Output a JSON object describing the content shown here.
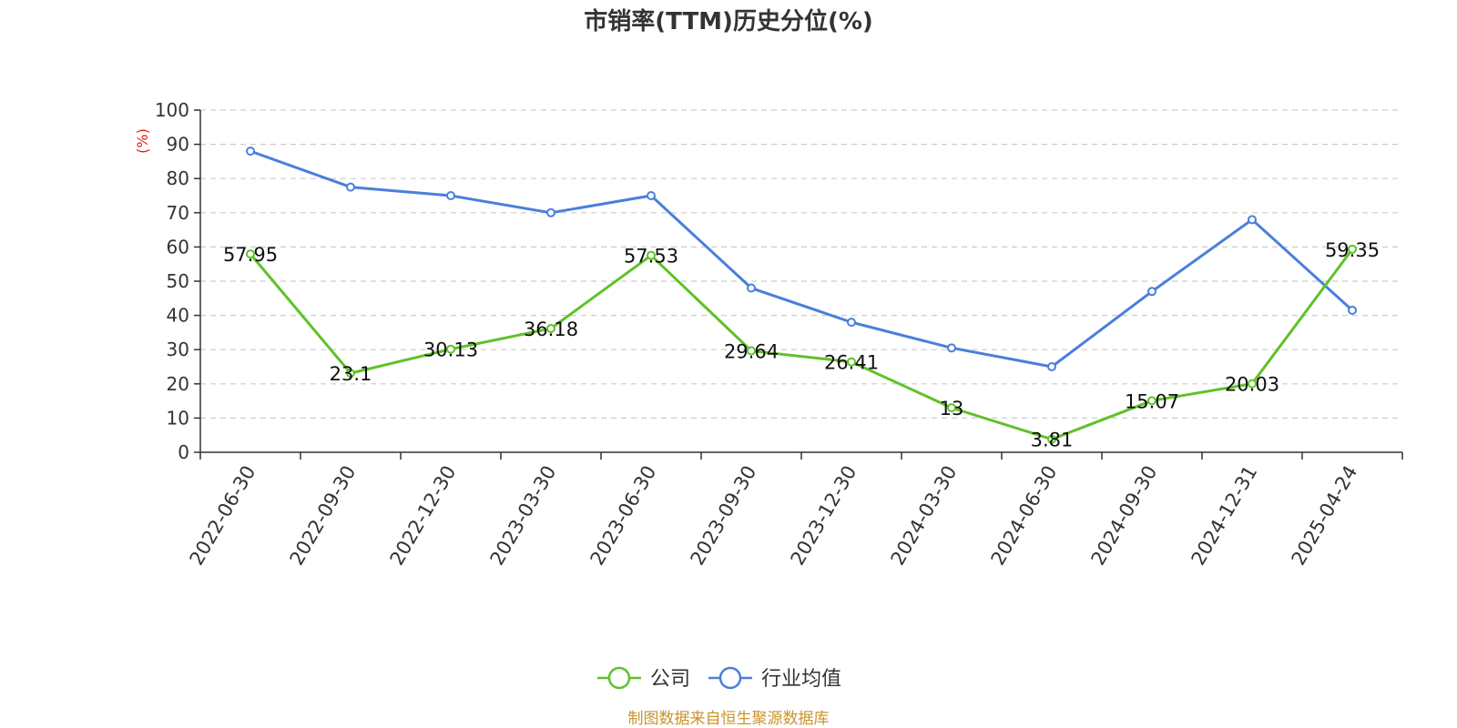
{
  "chart_data": {
    "type": "line",
    "title": "市销率(TTM)历史分位(%)",
    "ylabel": "(%)",
    "ylim": [
      0,
      100
    ],
    "yticks": [
      0,
      10,
      20,
      30,
      40,
      50,
      60,
      70,
      80,
      90,
      100
    ],
    "grid": true,
    "legend_position": "bottom-center",
    "categories": [
      "2022-06-30",
      "2022-09-30",
      "2022-12-30",
      "2023-03-30",
      "2023-06-30",
      "2023-09-30",
      "2023-12-30",
      "2024-03-30",
      "2024-06-30",
      "2024-09-30",
      "2024-12-31",
      "2025-04-24"
    ],
    "series": [
      {
        "name": "公司",
        "color": "#5ec228",
        "show_labels": true,
        "values": [
          57.95,
          23.1,
          30.13,
          36.18,
          57.53,
          29.64,
          26.41,
          13,
          3.81,
          15.07,
          20.03,
          59.35
        ],
        "labels": [
          "57.95",
          "23.1",
          "30.13",
          "36.18",
          "57.53",
          "29.64",
          "26.41",
          "13",
          "3.81",
          "15.07",
          "20.03",
          "59.35"
        ]
      },
      {
        "name": "行业均值",
        "color": "#4a7fdb",
        "show_labels": false,
        "values": [
          88,
          77.5,
          75,
          70,
          75,
          48,
          38,
          30.5,
          25,
          47,
          68,
          41.5
        ]
      }
    ]
  },
  "source_text": "制图数据来自恒生聚源数据库",
  "colors": {
    "source_text": "#c8942c",
    "unit_label": "#e02020",
    "axis": "#333333",
    "grid": "#cccccc"
  }
}
